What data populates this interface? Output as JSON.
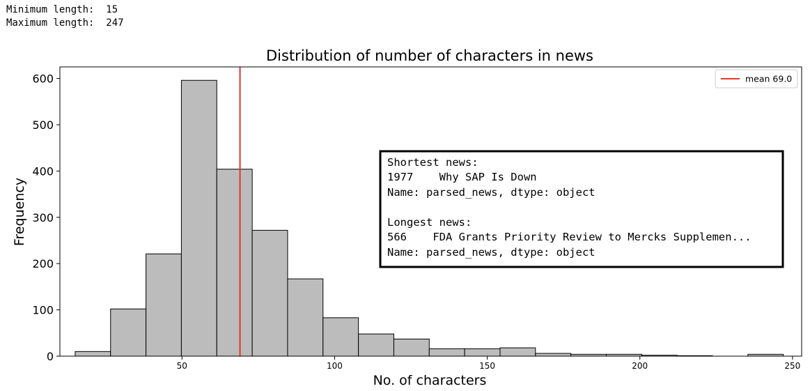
{
  "console": {
    "lines": [
      {
        "label": "Minimum length:",
        "value": "15"
      },
      {
        "label": "Maximum length:",
        "value": "247"
      }
    ]
  },
  "chart_data": {
    "type": "bar",
    "title": "Distribution of number of characters in news",
    "xlabel": "No. of characters",
    "ylabel": "Frequency",
    "xlim": [
      10,
      253
    ],
    "ylim": [
      0,
      625
    ],
    "xticks": [
      50,
      100,
      150,
      200,
      250
    ],
    "yticks": [
      0,
      100,
      200,
      300,
      400,
      500,
      600
    ],
    "bins": [
      {
        "x0": 15.0,
        "x1": 26.6,
        "count": 10
      },
      {
        "x0": 26.6,
        "x1": 38.2,
        "count": 102
      },
      {
        "x0": 38.2,
        "x1": 49.8,
        "count": 221
      },
      {
        "x0": 49.8,
        "x1": 61.4,
        "count": 596
      },
      {
        "x0": 61.4,
        "x1": 73.0,
        "count": 404
      },
      {
        "x0": 73.0,
        "x1": 84.6,
        "count": 272
      },
      {
        "x0": 84.6,
        "x1": 96.2,
        "count": 167
      },
      {
        "x0": 96.2,
        "x1": 107.8,
        "count": 83
      },
      {
        "x0": 107.8,
        "x1": 119.4,
        "count": 48
      },
      {
        "x0": 119.4,
        "x1": 131.0,
        "count": 37
      },
      {
        "x0": 131.0,
        "x1": 142.6,
        "count": 16
      },
      {
        "x0": 142.6,
        "x1": 154.2,
        "count": 16
      },
      {
        "x0": 154.2,
        "x1": 165.8,
        "count": 18
      },
      {
        "x0": 165.8,
        "x1": 177.4,
        "count": 6
      },
      {
        "x0": 177.4,
        "x1": 189.0,
        "count": 4
      },
      {
        "x0": 189.0,
        "x1": 200.6,
        "count": 4
      },
      {
        "x0": 200.6,
        "x1": 212.2,
        "count": 2
      },
      {
        "x0": 212.2,
        "x1": 223.8,
        "count": 1
      },
      {
        "x0": 223.8,
        "x1": 235.4,
        "count": 0
      },
      {
        "x0": 235.4,
        "x1": 247.0,
        "count": 4
      }
    ],
    "mean_line": {
      "value": 69.0,
      "label": "mean 69.0",
      "color": "#e8332a"
    },
    "bar_color": "#bcbcbc",
    "bar_edge_color": "#000000",
    "legend_position": "top-right",
    "grid": false,
    "annotation": {
      "lines": [
        "Shortest news:",
        "1977    Why SAP Is Down",
        "Name: parsed_news, dtype: object",
        "",
        "Longest news:",
        "566    FDA Grants Priority Review to Mercks Supplemen...",
        "Name: parsed_news, dtype: object"
      ]
    }
  }
}
